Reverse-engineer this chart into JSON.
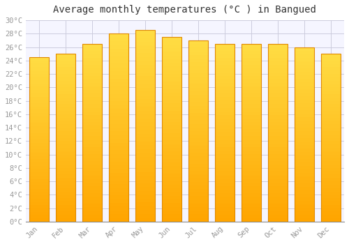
{
  "title": "Average monthly temperatures (°C ) in Bangued",
  "months": [
    "Jan",
    "Feb",
    "Mar",
    "Apr",
    "May",
    "Jun",
    "Jul",
    "Aug",
    "Sep",
    "Oct",
    "Nov",
    "Dec"
  ],
  "temperatures": [
    24.5,
    25.0,
    26.5,
    28.0,
    28.5,
    27.5,
    27.0,
    26.5,
    26.5,
    26.5,
    26.0,
    25.0
  ],
  "bar_color_main": "#FFAA00",
  "bar_color_light": "#FFD040",
  "bar_edge_color": "#E08800",
  "ylim": [
    0,
    30
  ],
  "ytick_step": 2,
  "bg_color": "#FFFFFF",
  "plot_bg_color": "#F5F5FF",
  "grid_color": "#CCCCDD",
  "title_fontsize": 10,
  "tick_fontsize": 7.5,
  "tick_color": "#999999",
  "title_color": "#333333"
}
